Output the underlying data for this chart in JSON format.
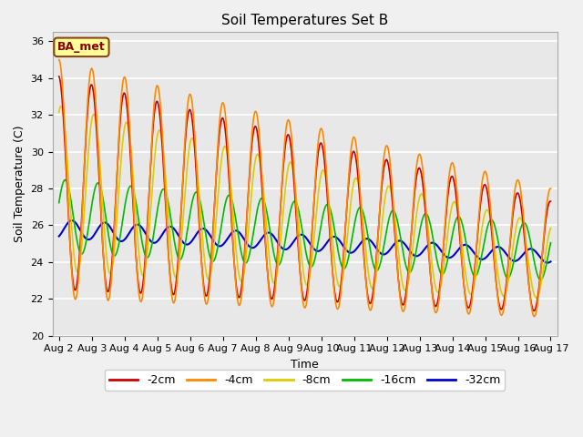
{
  "title": "Soil Temperatures Set B",
  "xlabel": "Time",
  "ylabel": "Soil Temperature (C)",
  "annotation": "BA_met",
  "ylim": [
    20,
    36.5
  ],
  "yticks": [
    20,
    22,
    24,
    26,
    28,
    30,
    32,
    34,
    36
  ],
  "plot_bg_color": "#e8e8e8",
  "fig_bg_color": "#f0f0f0",
  "series": {
    "-2cm": {
      "color": "#cc0000",
      "lw": 1.2
    },
    "-4cm": {
      "color": "#ff8800",
      "lw": 1.2
    },
    "-8cm": {
      "color": "#ddcc00",
      "lw": 1.2
    },
    "-16cm": {
      "color": "#00bb00",
      "lw": 1.2
    },
    "-32cm": {
      "color": "#0000cc",
      "lw": 1.5
    }
  },
  "date_labels": [
    "Aug 2",
    "Aug 3",
    "Aug 4",
    "Aug 5",
    "Aug 6",
    "Aug 7",
    "Aug 8",
    "Aug 9",
    "Aug 10",
    "Aug 11",
    "Aug 12",
    "Aug 13",
    "Aug 14",
    "Aug 15",
    "Aug 16",
    "Aug 17"
  ],
  "num_days": 15,
  "points_per_day": 48
}
